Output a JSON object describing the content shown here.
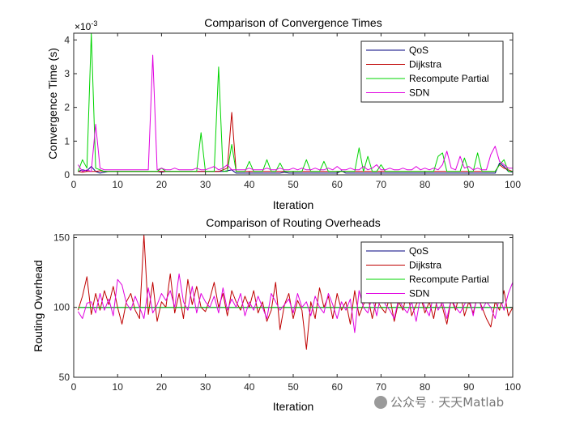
{
  "colors": {
    "qos": "#00007f",
    "dijkstra": "#bf0000",
    "recompute": "#00d400",
    "sdn": "#e000e0"
  },
  "watermark": {
    "text": "公众号 · 天天Matlab"
  },
  "chart_data": [
    {
      "type": "line",
      "title": "Comparison of Convergence Times",
      "xlabel": "Iteration",
      "ylabel": "Convergence Time (s)",
      "exponent": "×10^-3",
      "exponent_base": "×10",
      "exponent_power": "-3",
      "xlim": [
        0,
        100
      ],
      "ylim": [
        0,
        4.2
      ],
      "xticks": [
        0,
        10,
        20,
        30,
        40,
        50,
        60,
        70,
        80,
        90,
        100
      ],
      "yticks": [
        0,
        1,
        2,
        3,
        4
      ],
      "legend": {
        "position": "top-right",
        "entries": [
          "QoS",
          "Dijkstra",
          "Recompute Partial",
          "SDN"
        ]
      },
      "x": [
        1,
        2,
        3,
        4,
        5,
        6,
        7,
        8,
        9,
        10,
        11,
        12,
        13,
        14,
        15,
        16,
        17,
        18,
        19,
        20,
        21,
        22,
        23,
        24,
        25,
        26,
        27,
        28,
        29,
        30,
        31,
        32,
        33,
        34,
        35,
        36,
        37,
        38,
        39,
        40,
        41,
        42,
        43,
        44,
        45,
        46,
        47,
        48,
        49,
        50,
        51,
        52,
        53,
        54,
        55,
        56,
        57,
        58,
        59,
        60,
        61,
        62,
        63,
        64,
        65,
        66,
        67,
        68,
        69,
        70,
        71,
        72,
        73,
        74,
        75,
        76,
        77,
        78,
        79,
        80,
        81,
        82,
        83,
        84,
        85,
        86,
        87,
        88,
        89,
        90,
        91,
        92,
        93,
        94,
        95,
        96,
        97,
        98,
        99,
        100
      ],
      "series": [
        {
          "name": "QoS",
          "key": "qos",
          "values": [
            0.1,
            0.15,
            0.12,
            0.25,
            0.1,
            0.05,
            0.08,
            0.1,
            0.1,
            0.1,
            0.1,
            0.1,
            0.1,
            0.1,
            0.1,
            0.1,
            0.1,
            0.1,
            0.1,
            0.08,
            0.1,
            0.1,
            0.1,
            0.1,
            0.1,
            0.1,
            0.1,
            0.1,
            0.1,
            0.1,
            0.1,
            0.1,
            0.1,
            0.1,
            0.12,
            0.15,
            0.05,
            0.05,
            0.05,
            0.05,
            0.05,
            0.05,
            0.05,
            0.05,
            0.05,
            0.05,
            0.05,
            0.08,
            0.05,
            0.05,
            0.05,
            0.05,
            0.05,
            0.05,
            0.05,
            0.05,
            0.05,
            0.05,
            0.05,
            0.05,
            0.12,
            0.05,
            0.05,
            0.05,
            0.05,
            0.05,
            0.05,
            0.05,
            0.05,
            0.05,
            0.05,
            0.05,
            0.05,
            0.05,
            0.05,
            0.05,
            0.05,
            0.05,
            0.05,
            0.05,
            0.05,
            0.05,
            0.05,
            0.05,
            0.05,
            0.05,
            0.05,
            0.05,
            0.05,
            0.05,
            0.05,
            0.05,
            0.05,
            0.05,
            0.05,
            0.05,
            0.35,
            0.25,
            0.1,
            0.08
          ]
        },
        {
          "name": "Dijkstra",
          "key": "dijkstra",
          "values": [
            0.1,
            0.08,
            0.1,
            0.1,
            0.1,
            0.12,
            0.1,
            0.1,
            0.1,
            0.1,
            0.1,
            0.1,
            0.1,
            0.1,
            0.1,
            0.1,
            0.1,
            0.1,
            0.1,
            0.1,
            0.1,
            0.1,
            0.1,
            0.1,
            0.1,
            0.1,
            0.1,
            0.1,
            0.1,
            0.1,
            0.1,
            0.1,
            0.1,
            0.15,
            0.2,
            1.85,
            0.1,
            0.1,
            0.1,
            0.1,
            0.1,
            0.1,
            0.1,
            0.1,
            0.1,
            0.1,
            0.1,
            0.1,
            0.1,
            0.1,
            0.1,
            0.1,
            0.1,
            0.1,
            0.1,
            0.1,
            0.1,
            0.1,
            0.1,
            0.1,
            0.1,
            0.1,
            0.1,
            0.1,
            0.1,
            0.1,
            0.1,
            0.1,
            0.1,
            0.1,
            0.1,
            0.1,
            0.1,
            0.1,
            0.1,
            0.1,
            0.1,
            0.1,
            0.1,
            0.1,
            0.1,
            0.1,
            0.1,
            0.1,
            0.1,
            0.1,
            0.1,
            0.1,
            0.1,
            0.1,
            0.1,
            0.1,
            0.1,
            0.1,
            0.1,
            0.1,
            0.3,
            0.2,
            0.15,
            0.1
          ]
        },
        {
          "name": "Recompute Partial",
          "key": "recompute",
          "values": [
            0.1,
            0.45,
            0.2,
            4.2,
            0.2,
            0.15,
            0.1,
            0.1,
            0.1,
            0.1,
            0.1,
            0.1,
            0.1,
            0.1,
            0.1,
            0.1,
            0.1,
            0.1,
            0.1,
            0.2,
            0.1,
            0.1,
            0.1,
            0.1,
            0.1,
            0.1,
            0.1,
            0.1,
            1.25,
            0.1,
            0.1,
            0.1,
            3.2,
            0.1,
            0.1,
            0.9,
            0.1,
            0.1,
            0.1,
            0.4,
            0.1,
            0.1,
            0.1,
            0.45,
            0.1,
            0.1,
            0.35,
            0.1,
            0.1,
            0.1,
            0.1,
            0.1,
            0.45,
            0.1,
            0.1,
            0.1,
            0.4,
            0.1,
            0.1,
            0.1,
            0.1,
            0.1,
            0.1,
            0.1,
            0.8,
            0.1,
            0.55,
            0.1,
            0.1,
            0.3,
            0.1,
            0.1,
            0.1,
            0.1,
            0.1,
            0.1,
            0.1,
            0.1,
            0.1,
            0.1,
            0.1,
            0.1,
            0.55,
            0.65,
            0.1,
            0.1,
            0.1,
            0.1,
            0.5,
            0.1,
            0.1,
            0.65,
            0.1,
            0.1,
            0.1,
            0.1,
            0.3,
            0.45,
            0.1,
            0.1
          ]
        },
        {
          "name": "SDN",
          "key": "sdn",
          "values": [
            0.3,
            0.1,
            0.15,
            0.1,
            1.5,
            0.2,
            0.15,
            0.15,
            0.15,
            0.15,
            0.15,
            0.15,
            0.15,
            0.15,
            0.15,
            0.15,
            0.15,
            3.55,
            0.15,
            0.2,
            0.15,
            0.15,
            0.2,
            0.15,
            0.15,
            0.15,
            0.15,
            0.2,
            0.15,
            0.15,
            0.2,
            0.25,
            0.15,
            0.2,
            0.3,
            0.15,
            0.15,
            0.15,
            0.15,
            0.2,
            0.15,
            0.15,
            0.15,
            0.2,
            0.15,
            0.15,
            0.2,
            0.15,
            0.15,
            0.2,
            0.15,
            0.2,
            0.15,
            0.15,
            0.2,
            0.15,
            0.15,
            0.2,
            0.15,
            0.25,
            0.15,
            0.15,
            0.2,
            0.15,
            0.15,
            0.25,
            0.15,
            0.2,
            0.3,
            0.15,
            0.15,
            0.2,
            0.15,
            0.15,
            0.2,
            0.15,
            0.15,
            0.25,
            0.15,
            0.2,
            0.15,
            0.2,
            0.15,
            0.3,
            0.7,
            0.2,
            0.15,
            0.55,
            0.2,
            0.25,
            0.15,
            0.2,
            0.15,
            0.15,
            0.6,
            0.85,
            0.4,
            0.3,
            0.2,
            0.2
          ]
        }
      ]
    },
    {
      "type": "line",
      "title": "Comparison of Routing Overheads",
      "xlabel": "Iteration",
      "ylabel": "Routing Overhead",
      "xlim": [
        0,
        100
      ],
      "ylim": [
        50,
        152
      ],
      "xticks": [
        0,
        10,
        20,
        30,
        40,
        50,
        60,
        70,
        80,
        90,
        100
      ],
      "yticks": [
        50,
        100,
        150
      ],
      "legend": {
        "position": "top-right",
        "entries": [
          "QoS",
          "Dijkstra",
          "Recompute Partial",
          "SDN"
        ]
      },
      "x": [
        1,
        2,
        3,
        4,
        5,
        6,
        7,
        8,
        9,
        10,
        11,
        12,
        13,
        14,
        15,
        16,
        17,
        18,
        19,
        20,
        21,
        22,
        23,
        24,
        25,
        26,
        27,
        28,
        29,
        30,
        31,
        32,
        33,
        34,
        35,
        36,
        37,
        38,
        39,
        40,
        41,
        42,
        43,
        44,
        45,
        46,
        47,
        48,
        49,
        50,
        51,
        52,
        53,
        54,
        55,
        56,
        57,
        58,
        59,
        60,
        61,
        62,
        63,
        64,
        65,
        66,
        67,
        68,
        69,
        70,
        71,
        72,
        73,
        74,
        75,
        76,
        77,
        78,
        79,
        80,
        81,
        82,
        83,
        84,
        85,
        86,
        87,
        88,
        89,
        90,
        91,
        92,
        93,
        94,
        95,
        96,
        97,
        98,
        99,
        100
      ],
      "series": [
        {
          "name": "QoS",
          "key": "qos",
          "values": [
            100,
            100,
            100,
            100,
            100,
            100,
            100,
            100,
            100,
            100,
            100,
            100,
            100,
            100,
            100,
            100,
            100,
            100,
            100,
            100,
            100,
            100,
            100,
            100,
            100,
            100,
            100,
            100,
            100,
            100,
            100,
            100,
            100,
            100,
            100,
            100,
            100,
            100,
            100,
            100,
            100,
            100,
            100,
            100,
            100,
            100,
            100,
            100,
            100,
            100,
            100,
            100,
            100,
            100,
            100,
            100,
            100,
            100,
            100,
            100,
            100,
            100,
            100,
            100,
            100,
            100,
            100,
            100,
            100,
            100,
            100,
            100,
            100,
            100,
            100,
            100,
            100,
            100,
            100,
            100,
            100,
            100,
            100,
            100,
            100,
            100,
            100,
            100,
            100,
            100,
            100,
            100,
            100,
            100,
            100,
            100,
            100,
            100,
            100,
            100
          ]
        },
        {
          "name": "Dijkstra",
          "key": "dijkstra",
          "values": [
            98,
            108,
            122,
            95,
            110,
            98,
            112,
            102,
            115,
            100,
            88,
            104,
            110,
            98,
            92,
            152,
            95,
            118,
            90,
            104,
            100,
            124,
            96,
            110,
            92,
            120,
            102,
            115,
            100,
            97,
            106,
            118,
            100,
            110,
            94,
            112,
            104,
            98,
            108,
            100,
            112,
            96,
            104,
            90,
            98,
            118,
            84,
            102,
            110,
            92,
            105,
            98,
            70,
            104,
            92,
            114,
            100,
            108,
            92,
            110,
            98,
            104,
            88,
            112,
            94,
            102,
            108,
            92,
            106,
            100,
            96,
            108,
            90,
            104,
            98,
            112,
            94,
            102,
            108,
            96,
            104,
            92,
            110,
            100,
            88,
            106,
            98,
            112,
            94,
            104,
            96,
            108,
            100,
            92,
            86,
            104,
            98,
            112,
            94,
            100
          ]
        },
        {
          "name": "Recompute Partial",
          "key": "recompute",
          "values": [
            100,
            100,
            100,
            100,
            100,
            100,
            100,
            100,
            100,
            100,
            100,
            100,
            100,
            100,
            100,
            100,
            100,
            100,
            100,
            100,
            100,
            100,
            100,
            100,
            100,
            100,
            100,
            100,
            100,
            100,
            100,
            100,
            100,
            100,
            100,
            100,
            100,
            100,
            100,
            100,
            100,
            100,
            100,
            100,
            100,
            100,
            100,
            100,
            100,
            100,
            100,
            100,
            100,
            100,
            100,
            100,
            100,
            100,
            100,
            100,
            100,
            100,
            100,
            100,
            100,
            100,
            100,
            100,
            100,
            100,
            100,
            100,
            100,
            100,
            100,
            100,
            100,
            100,
            100,
            100,
            100,
            100,
            100,
            100,
            100,
            100,
            100,
            100,
            100,
            100,
            100,
            100,
            100,
            100,
            100,
            100,
            100,
            100,
            100,
            100
          ]
        },
        {
          "name": "SDN",
          "key": "sdn",
          "values": [
            97,
            92,
            103,
            104,
            96,
            110,
            98,
            106,
            94,
            120,
            116,
            103,
            98,
            108,
            100,
            92,
            114,
            96,
            102,
            110,
            105,
            112,
            100,
            124,
            104,
            98,
            115,
            96,
            110,
            104,
            100,
            108,
            96,
            114,
            98,
            106,
            100,
            110,
            94,
            104,
            98,
            108,
            100,
            92,
            110,
            104,
            98,
            102,
            106,
            96,
            110,
            100,
            104,
            94,
            108,
            100,
            96,
            110,
            102,
            92,
            104,
            98,
            106,
            82,
            112,
            100,
            96,
            108,
            94,
            110,
            102,
            98,
            92,
            106,
            100,
            96,
            104,
            90,
            108,
            100,
            94,
            110,
            98,
            104,
            92,
            106,
            100,
            96,
            102,
            108,
            94,
            110,
            98,
            104,
            100,
            92,
            108,
            98,
            110,
            118
          ]
        }
      ]
    }
  ]
}
